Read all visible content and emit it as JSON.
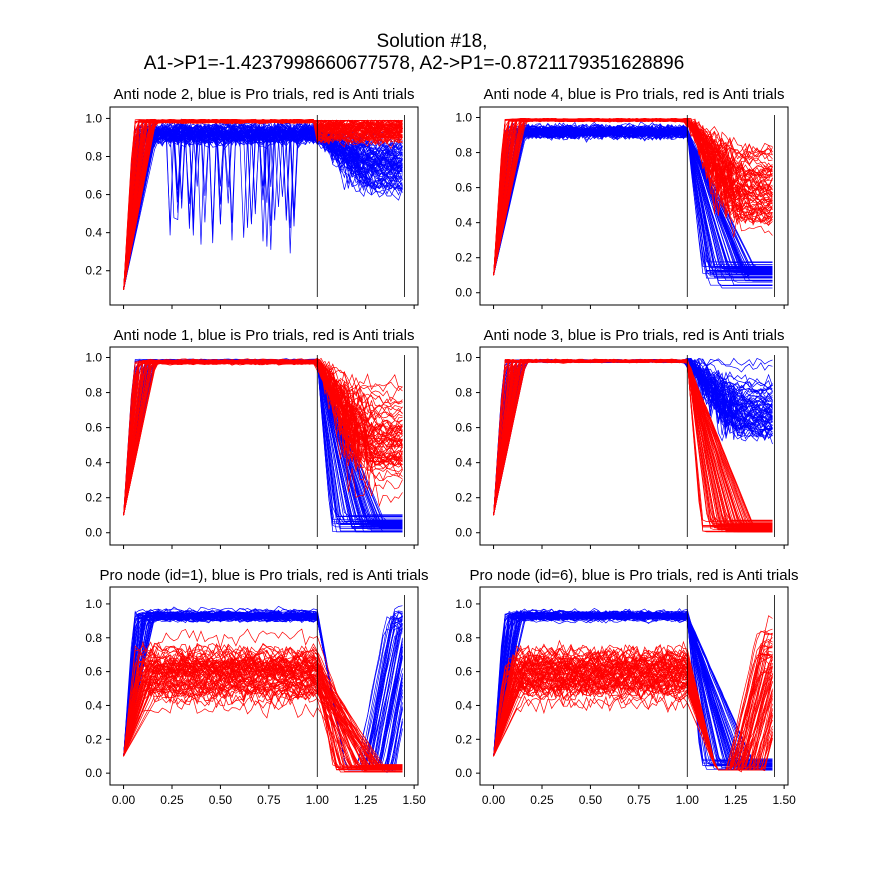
{
  "figure": {
    "title_line1": "Solution #18,",
    "title_line2": "A1->P1=-1.4237998660677578,  A2->P1=-0.8721179351628896"
  },
  "colors": {
    "pro": "#0000ff",
    "anti": "#ff0000",
    "axes": "#000000"
  },
  "chart_data": [
    {
      "type": "line",
      "title": "Anti node 2, blue is Pro trials, red is Anti trials",
      "xlabel": "",
      "ylabel": "",
      "xlim": [
        -0.07,
        1.52
      ],
      "ylim": [
        0.02,
        1.06
      ],
      "x_ticks": [
        0.0,
        0.25,
        0.5,
        0.75,
        1.0,
        1.25,
        1.5
      ],
      "x_tick_labels": [],
      "y_ticks": [
        0.2,
        0.4,
        0.6,
        0.8,
        1.0
      ],
      "y_tick_labels": [
        "0.2",
        "0.4",
        "0.6",
        "0.8",
        "1.0"
      ],
      "vlines": [
        1.0,
        1.45
      ],
      "series": [
        {
          "color": "blue",
          "count": 70,
          "start": 0.1,
          "plateau": 0.92,
          "plateau_spread": 0.05,
          "noise": 0.06,
          "dips": 1,
          "after": "mixed_low",
          "after_level": 0.75,
          "after_spread": 0.25
        },
        {
          "color": "red",
          "count": 70,
          "start": 0.1,
          "plateau": 0.985,
          "plateau_spread": 0.01,
          "noise": 0.008,
          "dips": 0,
          "after": "stay_high",
          "after_level": 0.95,
          "after_spread": 0.1
        }
      ]
    },
    {
      "type": "line",
      "title": "Anti node 4, blue is Pro trials, red is Anti trials",
      "xlabel": "",
      "ylabel": "",
      "xlim": [
        -0.07,
        1.52
      ],
      "ylim": [
        -0.07,
        1.06
      ],
      "x_ticks": [
        0.0,
        0.25,
        0.5,
        0.75,
        1.0,
        1.25,
        1.5
      ],
      "x_tick_labels": [],
      "y_ticks": [
        0.0,
        0.2,
        0.4,
        0.6,
        0.8,
        1.0
      ],
      "y_tick_labels": [
        "0.0",
        "0.2",
        "0.4",
        "0.6",
        "0.8",
        "1.0"
      ],
      "vlines": [
        1.0,
        1.45
      ],
      "series": [
        {
          "color": "blue",
          "count": 70,
          "start": 0.1,
          "plateau": 0.92,
          "plateau_spread": 0.04,
          "noise": 0.04,
          "dips": 0,
          "after": "drop_low",
          "after_level": 0.12,
          "after_spread": 0.1
        },
        {
          "color": "red",
          "count": 70,
          "start": 0.1,
          "plateau": 0.985,
          "plateau_spread": 0.01,
          "noise": 0.008,
          "dips": 0,
          "after": "mixed_high",
          "after_level": 0.6,
          "after_spread": 0.35
        }
      ]
    },
    {
      "type": "line",
      "title": "Anti node 1, blue is Pro trials, red is Anti trials",
      "xlabel": "",
      "ylabel": "",
      "xlim": [
        -0.07,
        1.52
      ],
      "ylim": [
        -0.07,
        1.06
      ],
      "x_ticks": [
        0.0,
        0.25,
        0.5,
        0.75,
        1.0,
        1.25,
        1.5
      ],
      "x_tick_labels": [],
      "y_ticks": [
        0.0,
        0.2,
        0.4,
        0.6,
        0.8,
        1.0
      ],
      "y_tick_labels": [
        "0.0",
        "0.2",
        "0.4",
        "0.6",
        "0.8",
        "1.0"
      ],
      "vlines": [
        1.0,
        1.45
      ],
      "series": [
        {
          "color": "blue",
          "count": 70,
          "start": 0.1,
          "plateau": 0.98,
          "plateau_spread": 0.01,
          "noise": 0.006,
          "dips": 0,
          "after": "drop_low",
          "after_level": 0.05,
          "after_spread": 0.08
        },
        {
          "color": "red",
          "count": 70,
          "start": 0.1,
          "plateau": 0.975,
          "plateau_spread": 0.015,
          "noise": 0.01,
          "dips": 0,
          "after": "mixed_high",
          "after_level": 0.5,
          "after_spread": 0.4
        }
      ]
    },
    {
      "type": "line",
      "title": "Anti node 3, blue is Pro trials, red is Anti trials",
      "xlabel": "",
      "ylabel": "",
      "xlim": [
        -0.07,
        1.52
      ],
      "ylim": [
        -0.07,
        1.06
      ],
      "x_ticks": [
        0.0,
        0.25,
        0.5,
        0.75,
        1.0,
        1.25,
        1.5
      ],
      "x_tick_labels": [],
      "y_ticks": [
        0.0,
        0.2,
        0.4,
        0.6,
        0.8,
        1.0
      ],
      "y_tick_labels": [
        "0.0",
        "0.2",
        "0.4",
        "0.6",
        "0.8",
        "1.0"
      ],
      "vlines": [
        1.0,
        1.45
      ],
      "series": [
        {
          "color": "blue",
          "count": 70,
          "start": 0.1,
          "plateau": 0.98,
          "plateau_spread": 0.01,
          "noise": 0.006,
          "dips": 0,
          "after": "mixed_high",
          "after_level": 0.7,
          "after_spread": 0.3
        },
        {
          "color": "red",
          "count": 70,
          "start": 0.1,
          "plateau": 0.98,
          "plateau_spread": 0.01,
          "noise": 0.008,
          "dips": 0,
          "after": "drop_low",
          "after_level": 0.03,
          "after_spread": 0.05
        }
      ]
    },
    {
      "type": "line",
      "title": "Pro node (id=1), blue is Pro trials, red is Anti trials",
      "xlabel": "",
      "ylabel": "",
      "xlim": [
        -0.07,
        1.52
      ],
      "ylim": [
        -0.07,
        1.1
      ],
      "x_ticks": [
        0.0,
        0.25,
        0.5,
        0.75,
        1.0,
        1.25,
        1.5
      ],
      "x_tick_labels": [
        "0.00",
        "0.25",
        "0.50",
        "0.75",
        "1.00",
        "1.25",
        "1.50"
      ],
      "y_ticks": [
        0.0,
        0.2,
        0.4,
        0.6,
        0.8,
        1.0
      ],
      "y_tick_labels": [
        "0.0",
        "0.2",
        "0.4",
        "0.6",
        "0.8",
        "1.0"
      ],
      "vlines": [
        1.0,
        1.45
      ],
      "series": [
        {
          "color": "blue",
          "count": 60,
          "start": 0.1,
          "plateau": 0.93,
          "plateau_spread": 0.04,
          "noise": 0.025,
          "dips": 0,
          "after": "drop_rise",
          "after_level": 0.9,
          "after_spread": 0.12
        },
        {
          "color": "red",
          "count": 70,
          "start": 0.1,
          "plateau": 0.6,
          "plateau_spread": 0.25,
          "noise": 0.08,
          "dips": 0,
          "after": "drop_low",
          "after_level": 0.03,
          "after_spread": 0.03
        }
      ]
    },
    {
      "type": "line",
      "title": "Pro node (id=6), blue is Pro trials, red is Anti trials",
      "xlabel": "",
      "ylabel": "",
      "xlim": [
        -0.07,
        1.52
      ],
      "ylim": [
        -0.07,
        1.1
      ],
      "x_ticks": [
        0.0,
        0.25,
        0.5,
        0.75,
        1.0,
        1.25,
        1.5
      ],
      "x_tick_labels": [
        "0.00",
        "0.25",
        "0.50",
        "0.75",
        "1.00",
        "1.25",
        "1.50"
      ],
      "y_ticks": [
        0.0,
        0.2,
        0.4,
        0.6,
        0.8,
        1.0
      ],
      "y_tick_labels": [
        "0.0",
        "0.2",
        "0.4",
        "0.6",
        "0.8",
        "1.0"
      ],
      "vlines": [
        1.0,
        1.45
      ],
      "series": [
        {
          "color": "blue",
          "count": 60,
          "start": 0.1,
          "plateau": 0.93,
          "plateau_spread": 0.04,
          "noise": 0.025,
          "dips": 0,
          "after": "drop_low",
          "after_level": 0.05,
          "after_spread": 0.06
        },
        {
          "color": "red",
          "count": 70,
          "start": 0.1,
          "plateau": 0.6,
          "plateau_spread": 0.25,
          "noise": 0.08,
          "dips": 0,
          "after": "drop_rise",
          "after_level": 0.7,
          "after_spread": 0.25
        }
      ]
    }
  ]
}
